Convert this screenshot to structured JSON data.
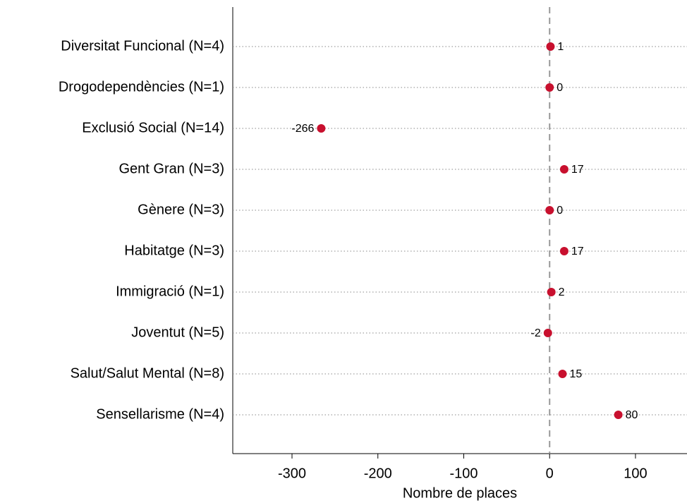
{
  "chart_data": {
    "type": "dot",
    "x_label": "Nombre de places",
    "categories": [
      "Diversitat Funcional (N=4)",
      "Drogodependències (N=1)",
      "Exclusió Social (N=14)",
      "Gent Gran (N=3)",
      "Gènere (N=3)",
      "Habitatge (N=3)",
      "Immigració (N=1)",
      "Joventut (N=5)",
      "Salut/Salut Mental (N=8)",
      "Sensellarisme (N=4)"
    ],
    "values": [
      1,
      0,
      -266,
      17,
      0,
      17,
      2,
      -2,
      15,
      80
    ],
    "color": "#c8102e",
    "xlim": [
      -369,
      160
    ],
    "xticks": [
      -300,
      -200,
      -100,
      0,
      100
    ],
    "xline": 0,
    "grid": true
  }
}
